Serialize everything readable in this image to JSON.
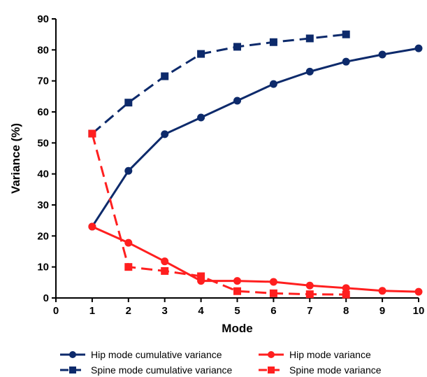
{
  "chart_data": {
    "type": "line",
    "xlabel": "Mode",
    "ylabel": "Variance (%)",
    "xlim": [
      0,
      10
    ],
    "ylim": [
      0,
      90
    ],
    "x_ticks": [
      0,
      1,
      2,
      3,
      4,
      5,
      6,
      7,
      8,
      9,
      10
    ],
    "y_ticks": [
      0,
      10,
      20,
      30,
      40,
      50,
      60,
      70,
      80,
      90
    ],
    "grid": false,
    "legend_position": "bottom",
    "series": [
      {
        "name": "Hip mode cumulative variance",
        "color": "#0d2a6b",
        "marker": "circle",
        "dash": "solid",
        "x": [
          1,
          2,
          3,
          4,
          5,
          6,
          7,
          8,
          9,
          10
        ],
        "y": [
          23,
          41,
          52.8,
          58.2,
          63.6,
          69,
          73,
          76.2,
          78.5,
          80.5
        ]
      },
      {
        "name": "Spine mode cumulative variance",
        "color": "#0d2a6b",
        "marker": "square",
        "dash": "dashed",
        "x": [
          1,
          2,
          3,
          4,
          5,
          6,
          7,
          8
        ],
        "y": [
          53,
          63,
          71.5,
          78.7,
          81,
          82.5,
          83.7,
          85
        ]
      },
      {
        "name": "Hip mode variance",
        "color": "#ff1f1f",
        "marker": "circle",
        "dash": "solid",
        "x": [
          1,
          2,
          3,
          4,
          5,
          6,
          7,
          8,
          9,
          10
        ],
        "y": [
          23,
          17.8,
          11.8,
          5.5,
          5.5,
          5.2,
          4,
          3.2,
          2.3,
          2
        ]
      },
      {
        "name": "Spine mode variance",
        "color": "#ff1f1f",
        "marker": "square",
        "dash": "dashed",
        "x": [
          1,
          2,
          3,
          4,
          5,
          6,
          7,
          8
        ],
        "y": [
          53,
          10,
          8.7,
          7,
          2.2,
          1.5,
          1.2,
          1.1
        ]
      }
    ]
  }
}
